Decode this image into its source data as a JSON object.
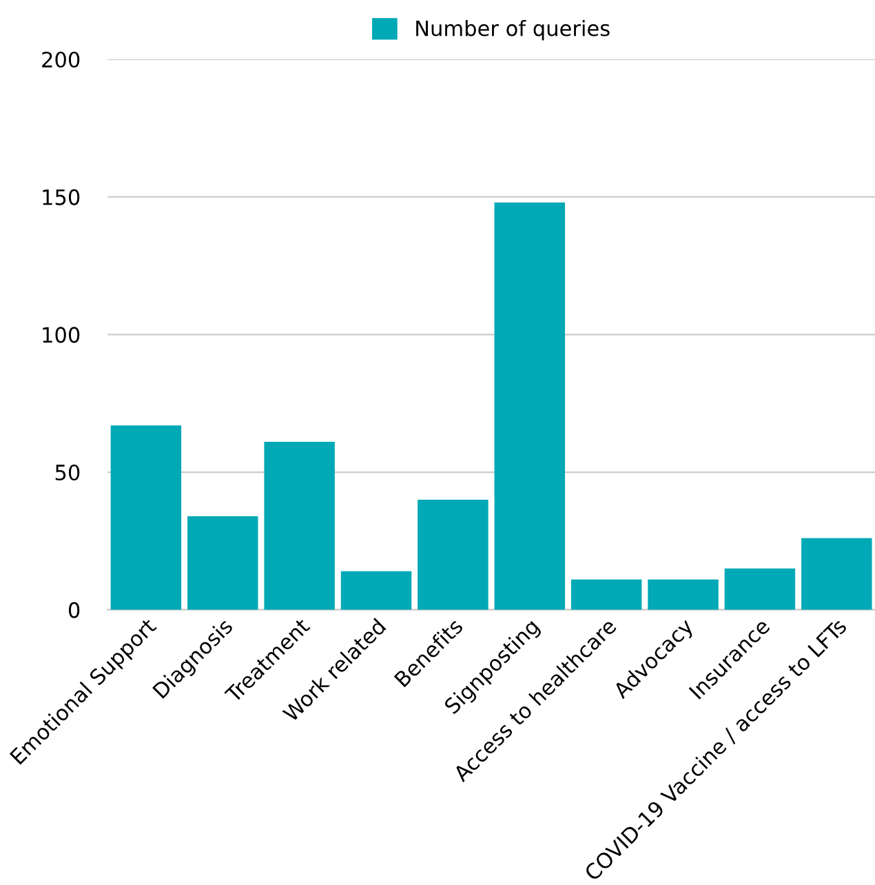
{
  "chart_data": {
    "type": "bar",
    "categories": [
      "Emotional Support",
      "Diagnosis",
      "Treatment",
      "Work related",
      "Benefits",
      "Signposting",
      "Access to healthcare",
      "Advocacy",
      "Insurance",
      "COVID-19 Vaccine / access to LFTs"
    ],
    "series": [
      {
        "name": "Number of queries",
        "color": "#00a9b5",
        "values": [
          67,
          34,
          61,
          14,
          40,
          148,
          11,
          11,
          15,
          26
        ]
      }
    ],
    "ylim": [
      0,
      200
    ],
    "yticks": [
      0,
      50,
      100,
      150,
      200
    ],
    "grid": "y",
    "legend": "top"
  }
}
